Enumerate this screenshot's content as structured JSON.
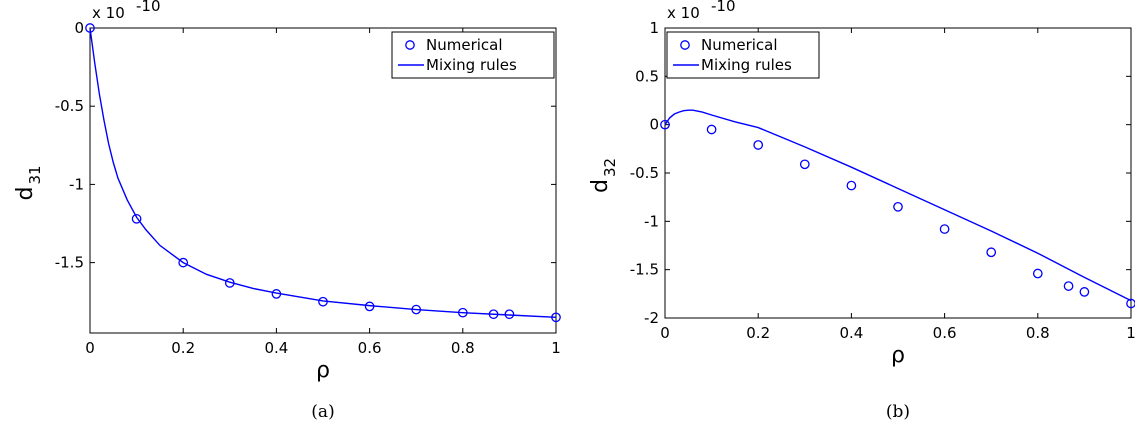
{
  "chart_data": [
    {
      "type": "line",
      "xlabel": "ρ",
      "ylabel_main": "d",
      "ylabel_sub": "31",
      "exponent_label": "x 10",
      "exponent_power": "-10",
      "caption": "(a)",
      "xlim": [
        0,
        1
      ],
      "ylim": [
        -1.95,
        0
      ],
      "xticks": [
        0,
        0.2,
        0.4,
        0.6,
        0.8,
        1
      ],
      "xtick_labels": [
        "0",
        "0.2",
        "0.4",
        "0.6",
        "0.8",
        "1"
      ],
      "yticks": [
        0,
        -0.5,
        -1,
        -1.5
      ],
      "ytick_labels": [
        "0",
        "-0.5",
        "-1",
        "-1.5"
      ],
      "legend": {
        "placement": "top-right",
        "entries": [
          "Numerical",
          "Mixing rules"
        ]
      },
      "color": "#0000ff",
      "series": [
        {
          "name": "Numerical",
          "marker": "circle",
          "x": [
            0,
            0.1,
            0.2,
            0.3,
            0.4,
            0.5,
            0.6,
            0.7,
            0.8,
            0.866,
            0.9,
            1
          ],
          "y": [
            0,
            -1.22,
            -1.5,
            -1.63,
            -1.7,
            -1.75,
            -1.78,
            -1.8,
            -1.82,
            -1.83,
            -1.83,
            -1.85
          ]
        },
        {
          "name": "Mixing rules",
          "marker": "line",
          "x": [
            0,
            0.01,
            0.02,
            0.03,
            0.04,
            0.05,
            0.06,
            0.08,
            0.1,
            0.12,
            0.15,
            0.2,
            0.25,
            0.3,
            0.35,
            0.4,
            0.5,
            0.6,
            0.7,
            0.8,
            0.9,
            1
          ],
          "y": [
            0,
            -0.22,
            -0.42,
            -0.59,
            -0.74,
            -0.86,
            -0.96,
            -1.1,
            -1.21,
            -1.29,
            -1.39,
            -1.5,
            -1.575,
            -1.625,
            -1.665,
            -1.695,
            -1.745,
            -1.775,
            -1.8,
            -1.82,
            -1.835,
            -1.85
          ]
        }
      ]
    },
    {
      "type": "line",
      "xlabel": "ρ",
      "ylabel_main": "d",
      "ylabel_sub": "32",
      "exponent_label": "x 10",
      "exponent_power": "-10",
      "caption": "(b)",
      "xlim": [
        0,
        1
      ],
      "ylim": [
        -2,
        1
      ],
      "xticks": [
        0,
        0.2,
        0.4,
        0.6,
        0.8,
        1
      ],
      "xtick_labels": [
        "0",
        "0.2",
        "0.4",
        "0.6",
        "0.8",
        "1"
      ],
      "yticks": [
        1,
        0.5,
        0,
        -0.5,
        -1,
        -1.5,
        -2
      ],
      "ytick_labels": [
        "1",
        "0.5",
        "0",
        "-0.5",
        "-1",
        "-1.5",
        "-2"
      ],
      "legend": {
        "placement": "top-left",
        "entries": [
          "Numerical",
          "Mixing rules"
        ]
      },
      "color": "#0000ff",
      "series": [
        {
          "name": "Numerical",
          "marker": "circle",
          "x": [
            0,
            0.1,
            0.2,
            0.3,
            0.4,
            0.5,
            0.6,
            0.7,
            0.8,
            0.866,
            0.9,
            1
          ],
          "y": [
            0,
            -0.05,
            -0.21,
            -0.41,
            -0.63,
            -0.85,
            -1.08,
            -1.32,
            -1.54,
            -1.67,
            -1.73,
            -1.85
          ]
        },
        {
          "name": "Mixing rules",
          "marker": "line",
          "x": [
            0,
            0.01,
            0.02,
            0.03,
            0.04,
            0.05,
            0.06,
            0.08,
            0.1,
            0.15,
            0.2,
            0.3,
            0.4,
            0.5,
            0.6,
            0.7,
            0.8,
            0.9,
            1
          ],
          "y": [
            0,
            0.07,
            0.11,
            0.13,
            0.145,
            0.15,
            0.15,
            0.13,
            0.1,
            0.03,
            -0.03,
            -0.23,
            -0.44,
            -0.66,
            -0.88,
            -1.1,
            -1.33,
            -1.58,
            -1.82
          ]
        }
      ]
    }
  ]
}
